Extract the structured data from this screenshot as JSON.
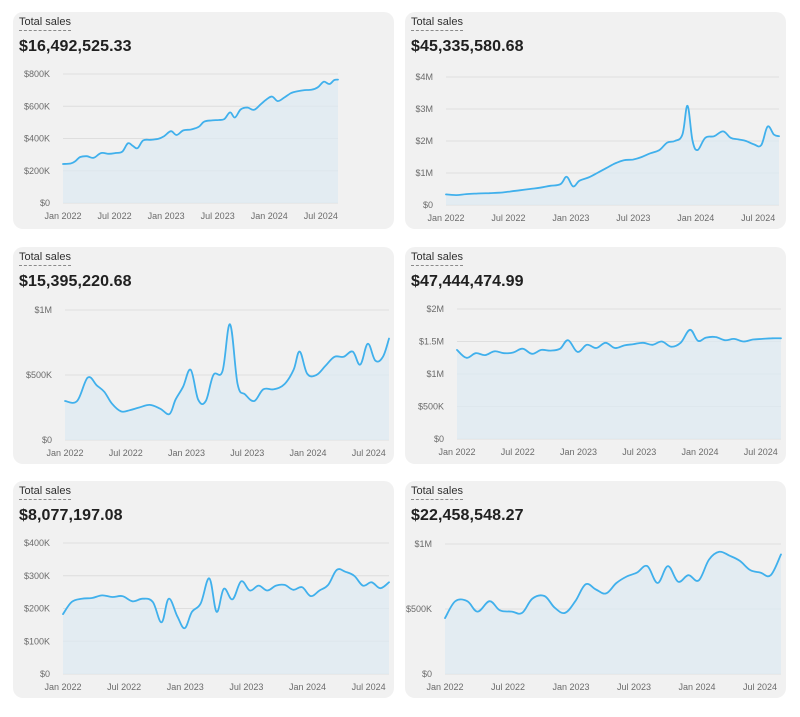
{
  "colors": {
    "line": "#40b0ec",
    "area": "#dde9f1",
    "grid": "#dedede",
    "card": "#f1f1f1"
  },
  "cards": [
    {
      "label": "Total sales",
      "value": "$16,492,525.33"
    },
    {
      "label": "Total sales",
      "value": "$45,335,580.68"
    },
    {
      "label": "Total sales",
      "value": "$15,395,220.68"
    },
    {
      "label": "Total sales",
      "value": "$47,444,474.99"
    },
    {
      "label": "Total sales",
      "value": "$8,077,197.08"
    },
    {
      "label": "Total sales",
      "value": "$22,458,548.27"
    }
  ],
  "chart_data": [
    {
      "type": "area",
      "title": "Total sales",
      "x_ticks": [
        "Jan 2022",
        "Jul 2022",
        "Jan 2023",
        "Jul 2023",
        "Jan 2024",
        "Jul 2024"
      ],
      "y_ticks": [
        "$0",
        "$200K",
        "$400K",
        "$600K",
        "$800K"
      ],
      "ylim": [
        0,
        800000
      ],
      "x_range": [
        "2022-01",
        "2024-09"
      ],
      "grid": true,
      "series": [
        {
          "values": [
            [
              0,
              242000
            ],
            [
              0.8,
              245000
            ],
            [
              1.3,
              260000
            ],
            [
              1.8,
              285000
            ],
            [
              2.5,
              290000
            ],
            [
              3.2,
              280000
            ],
            [
              4,
              310000
            ],
            [
              4.8,
              305000
            ],
            [
              5.5,
              310000
            ],
            [
              6.2,
              318000
            ],
            [
              6.8,
              370000
            ],
            [
              7.3,
              355000
            ],
            [
              7.8,
              340000
            ],
            [
              8.4,
              388000
            ],
            [
              9.2,
              392000
            ],
            [
              10,
              398000
            ],
            [
              10.6,
              415000
            ],
            [
              11.3,
              445000
            ],
            [
              11.9,
              422000
            ],
            [
              12.6,
              450000
            ],
            [
              13.4,
              456000
            ],
            [
              14.2,
              472000
            ],
            [
              14.8,
              505000
            ],
            [
              15.6,
              512000
            ],
            [
              16.3,
              515000
            ],
            [
              16.9,
              521000
            ],
            [
              17.5,
              562000
            ],
            [
              18,
              530000
            ],
            [
              18.6,
              580000
            ],
            [
              19.3,
              592000
            ],
            [
              20,
              578000
            ],
            [
              20.7,
              612000
            ],
            [
              21.3,
              642000
            ],
            [
              21.9,
              660000
            ],
            [
              22.5,
              632000
            ],
            [
              23.2,
              655000
            ],
            [
              23.9,
              682000
            ],
            [
              24.5,
              692000
            ],
            [
              25.3,
              700000
            ],
            [
              26,
              702000
            ],
            [
              26.7,
              718000
            ],
            [
              27.3,
              752000
            ],
            [
              27.9,
              738000
            ],
            [
              28.4,
              762000
            ],
            [
              28.8,
              765000
            ]
          ]
        }
      ]
    },
    {
      "type": "area",
      "title": "Total sales",
      "x_ticks": [
        "Jan 2022",
        "Jul 2022",
        "Jan 2023",
        "Jul 2023",
        "Jan 2024",
        "Jul 2024"
      ],
      "y_ticks": [
        "$0",
        "$1M",
        "$2M",
        "$3M",
        "$4M"
      ],
      "ylim": [
        0,
        4000000
      ],
      "x_range": [
        "2022-01",
        "2024-09"
      ],
      "grid": true,
      "series": [
        {
          "values": [
            [
              0,
              330000
            ],
            [
              0.8,
              310000
            ],
            [
              1.6,
              340000
            ],
            [
              2.5,
              360000
            ],
            [
              3.4,
              370000
            ],
            [
              4.2,
              385000
            ],
            [
              5,
              420000
            ],
            [
              5.8,
              460000
            ],
            [
              6.6,
              500000
            ],
            [
              7.4,
              540000
            ],
            [
              8.2,
              600000
            ],
            [
              9,
              650000
            ],
            [
              9.5,
              880000
            ],
            [
              10,
              580000
            ],
            [
              10.5,
              760000
            ],
            [
              11.2,
              860000
            ],
            [
              11.9,
              1000000
            ],
            [
              12.6,
              1150000
            ],
            [
              13.3,
              1300000
            ],
            [
              14,
              1400000
            ],
            [
              14.7,
              1420000
            ],
            [
              15.4,
              1500000
            ],
            [
              16.1,
              1620000
            ],
            [
              16.8,
              1720000
            ],
            [
              17.4,
              1950000
            ],
            [
              18,
              2000000
            ],
            [
              18.6,
              2200000
            ],
            [
              19,
              3100000
            ],
            [
              19.4,
              2000000
            ],
            [
              19.8,
              1720000
            ],
            [
              20.4,
              2100000
            ],
            [
              21.1,
              2150000
            ],
            [
              21.8,
              2300000
            ],
            [
              22.4,
              2100000
            ],
            [
              23,
              2050000
            ],
            [
              23.6,
              2000000
            ],
            [
              24.2,
              1900000
            ],
            [
              24.8,
              1870000
            ],
            [
              25.3,
              2450000
            ],
            [
              25.8,
              2200000
            ],
            [
              26.2,
              2150000
            ]
          ]
        }
      ]
    },
    {
      "type": "area",
      "title": "Total sales",
      "x_ticks": [
        "Jan 2022",
        "Jul 2022",
        "Jan 2023",
        "Jul 2023",
        "Jan 2024",
        "Jul 2024"
      ],
      "y_ticks": [
        "$0",
        "$500K",
        "$1M"
      ],
      "ylim": [
        0,
        1000000
      ],
      "x_range": [
        "2022-01",
        "2024-09"
      ],
      "grid": true,
      "series": [
        {
          "values": [
            [
              0,
              300000
            ],
            [
              0.8,
              300000
            ],
            [
              1.5,
              480000
            ],
            [
              2.1,
              420000
            ],
            [
              2.6,
              370000
            ],
            [
              3.1,
              280000
            ],
            [
              3.7,
              220000
            ],
            [
              4.3,
              230000
            ],
            [
              4.9,
              250000
            ],
            [
              5.6,
              270000
            ],
            [
              6.3,
              240000
            ],
            [
              6.9,
              200000
            ],
            [
              7.3,
              310000
            ],
            [
              7.8,
              410000
            ],
            [
              8.3,
              540000
            ],
            [
              8.8,
              310000
            ],
            [
              9.3,
              300000
            ],
            [
              9.8,
              500000
            ],
            [
              10.4,
              530000
            ],
            [
              10.9,
              890000
            ],
            [
              11.4,
              430000
            ],
            [
              11.9,
              350000
            ],
            [
              12.5,
              300000
            ],
            [
              13.1,
              390000
            ],
            [
              13.8,
              390000
            ],
            [
              14.5,
              430000
            ],
            [
              15.1,
              540000
            ],
            [
              15.5,
              680000
            ],
            [
              16,
              510000
            ],
            [
              16.6,
              500000
            ],
            [
              17.2,
              570000
            ],
            [
              17.8,
              640000
            ],
            [
              18.4,
              640000
            ],
            [
              19,
              680000
            ],
            [
              19.5,
              580000
            ],
            [
              20,
              740000
            ],
            [
              20.5,
              610000
            ],
            [
              21,
              640000
            ],
            [
              21.4,
              780000
            ]
          ]
        }
      ]
    },
    {
      "type": "area",
      "title": "Total sales",
      "x_ticks": [
        "Jan 2022",
        "Jul 2022",
        "Jan 2023",
        "Jul 2023",
        "Jan 2024",
        "Jul 2024"
      ],
      "y_ticks": [
        "$0",
        "$500K",
        "$1M",
        "$1.5M",
        "$2M"
      ],
      "ylim": [
        0,
        2000000
      ],
      "x_range": [
        "2022-01",
        "2024-09"
      ],
      "grid": true,
      "series": [
        {
          "values": [
            [
              0,
              1370000
            ],
            [
              0.7,
              1250000
            ],
            [
              1.4,
              1320000
            ],
            [
              2.1,
              1290000
            ],
            [
              2.8,
              1350000
            ],
            [
              3.5,
              1320000
            ],
            [
              4.2,
              1330000
            ],
            [
              4.9,
              1390000
            ],
            [
              5.6,
              1310000
            ],
            [
              6.3,
              1370000
            ],
            [
              7,
              1360000
            ],
            [
              7.7,
              1390000
            ],
            [
              8.3,
              1520000
            ],
            [
              9,
              1340000
            ],
            [
              9.7,
              1450000
            ],
            [
              10.4,
              1400000
            ],
            [
              11.1,
              1480000
            ],
            [
              11.8,
              1400000
            ],
            [
              12.5,
              1440000
            ],
            [
              13.2,
              1460000
            ],
            [
              13.9,
              1480000
            ],
            [
              14.6,
              1450000
            ],
            [
              15.3,
              1500000
            ],
            [
              16,
              1420000
            ],
            [
              16.7,
              1480000
            ],
            [
              17.4,
              1680000
            ],
            [
              18,
              1510000
            ],
            [
              18.6,
              1560000
            ],
            [
              19.3,
              1570000
            ],
            [
              20,
              1520000
            ],
            [
              20.7,
              1540000
            ],
            [
              21.4,
              1500000
            ],
            [
              22.1,
              1530000
            ],
            [
              22.8,
              1540000
            ],
            [
              23.5,
              1550000
            ],
            [
              24.2,
              1550000
            ]
          ]
        }
      ]
    },
    {
      "type": "area",
      "title": "Total sales",
      "x_ticks": [
        "Jan 2022",
        "Jul 2022",
        "Jan 2023",
        "Jul 2023",
        "Jan 2024",
        "Jul 2024"
      ],
      "y_ticks": [
        "$0",
        "$100K",
        "$200K",
        "$300K",
        "$400K"
      ],
      "ylim": [
        0,
        400000
      ],
      "x_range": [
        "2022-01",
        "2024-09"
      ],
      "grid": true,
      "series": [
        {
          "values": [
            [
              0,
              183000
            ],
            [
              0.6,
              220000
            ],
            [
              1.3,
              230000
            ],
            [
              2,
              232000
            ],
            [
              2.7,
              240000
            ],
            [
              3.4,
              235000
            ],
            [
              4.1,
              238000
            ],
            [
              4.8,
              222000
            ],
            [
              5.5,
              230000
            ],
            [
              6.2,
              220000
            ],
            [
              6.8,
              158000
            ],
            [
              7.3,
              230000
            ],
            [
              7.9,
              175000
            ],
            [
              8.4,
              140000
            ],
            [
              8.9,
              190000
            ],
            [
              9.5,
              215000
            ],
            [
              10.1,
              292000
            ],
            [
              10.6,
              190000
            ],
            [
              11.1,
              260000
            ],
            [
              11.7,
              228000
            ],
            [
              12.3,
              283000
            ],
            [
              12.9,
              255000
            ],
            [
              13.5,
              270000
            ],
            [
              14.1,
              255000
            ],
            [
              14.7,
              270000
            ],
            [
              15.3,
              272000
            ],
            [
              15.9,
              257000
            ],
            [
              16.5,
              265000
            ],
            [
              17.1,
              238000
            ],
            [
              17.7,
              255000
            ],
            [
              18.3,
              272000
            ],
            [
              18.9,
              318000
            ],
            [
              19.5,
              312000
            ],
            [
              20.1,
              300000
            ],
            [
              20.7,
              270000
            ],
            [
              21.3,
              280000
            ],
            [
              21.9,
              262000
            ],
            [
              22.5,
              280000
            ]
          ]
        }
      ]
    },
    {
      "type": "area",
      "title": "Total sales",
      "x_ticks": [
        "Jan 2022",
        "Jul 2022",
        "Jan 2023",
        "Jul 2023",
        "Jan 2024",
        "Jul 2024"
      ],
      "y_ticks": [
        "$0",
        "$500K",
        "$1M"
      ],
      "ylim": [
        0,
        1000000
      ],
      "x_range": [
        "2022-01",
        "2024-09"
      ],
      "grid": true,
      "series": [
        {
          "values": [
            [
              0,
              430000
            ],
            [
              0.6,
              560000
            ],
            [
              1.3,
              560000
            ],
            [
              1.9,
              480000
            ],
            [
              2.6,
              560000
            ],
            [
              3.2,
              490000
            ],
            [
              3.9,
              480000
            ],
            [
              4.5,
              470000
            ],
            [
              5.1,
              580000
            ],
            [
              5.8,
              600000
            ],
            [
              6.4,
              510000
            ],
            [
              7,
              470000
            ],
            [
              7.6,
              560000
            ],
            [
              8.2,
              690000
            ],
            [
              8.8,
              650000
            ],
            [
              9.4,
              620000
            ],
            [
              10,
              700000
            ],
            [
              10.6,
              750000
            ],
            [
              11.2,
              780000
            ],
            [
              11.8,
              830000
            ],
            [
              12.4,
              700000
            ],
            [
              13,
              830000
            ],
            [
              13.6,
              710000
            ],
            [
              14.2,
              760000
            ],
            [
              14.8,
              720000
            ],
            [
              15.4,
              880000
            ],
            [
              16,
              940000
            ],
            [
              16.6,
              910000
            ],
            [
              17.2,
              870000
            ],
            [
              17.8,
              800000
            ],
            [
              18.4,
              780000
            ],
            [
              19,
              760000
            ],
            [
              19.6,
              920000
            ]
          ]
        }
      ]
    }
  ]
}
